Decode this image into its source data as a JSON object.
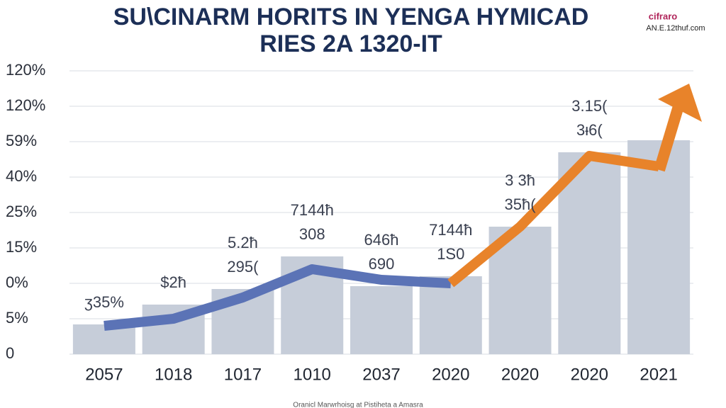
{
  "chart_data": {
    "type": "bar",
    "title": "SU\\CINARM HORITS IN YENGA HYMICAD",
    "subtitle": "RIES 2A 1320-IT",
    "logo": "cifraro",
    "logo_url": "AN.E.12thuf.com",
    "footer": "Oranicl Marwrhoisg at Pistiheta a Amasra",
    "categories": [
      "2057",
      "1018",
      "1017",
      "1010",
      "2037",
      "2020",
      "2020",
      "2020",
      "2021"
    ],
    "values": [
      0.84,
      1.4,
      1.84,
      2.76,
      1.92,
      2.2,
      3.6,
      5.7,
      6.04
    ],
    "color": "#c6cdd9",
    "series": [
      {
        "color": "#5b73b6",
        "values": [
          0.8,
          1.0,
          1.6,
          2.4,
          2.1,
          2.0,
          null,
          null,
          null
        ]
      },
      {
        "color": "#e8832a",
        "values": [
          null,
          null,
          null,
          null,
          null,
          2.0,
          3.6,
          5.6,
          5.3
        ]
      }
    ],
    "bar_labels": [
      [
        "ʒ35%"
      ],
      [
        "$2ħ"
      ],
      [
        "5.2ħ",
        "295("
      ],
      [
        "7144ħ",
        "308"
      ],
      [
        "646ħ",
        "690"
      ],
      [
        "7144ħ",
        "1S0"
      ],
      [
        "3 3ħ",
        "35ħ("
      ],
      [
        "3.15(",
        "3ᵻ6("
      ]
    ],
    "ylim": [
      0,
      8.3
    ],
    "yticks": [
      {
        "value": 0,
        "label": "0"
      },
      {
        "value": 1,
        "label": "5%"
      },
      {
        "value": 2,
        "label": "0%"
      },
      {
        "value": 3,
        "label": "15%"
      },
      {
        "value": 4,
        "label": "25%"
      },
      {
        "value": 5,
        "label": "40%"
      },
      {
        "value": 6,
        "label": "59%"
      },
      {
        "value": 7,
        "label": "120%"
      },
      {
        "value": 8,
        "label": "120%"
      }
    ],
    "grid": true
  }
}
